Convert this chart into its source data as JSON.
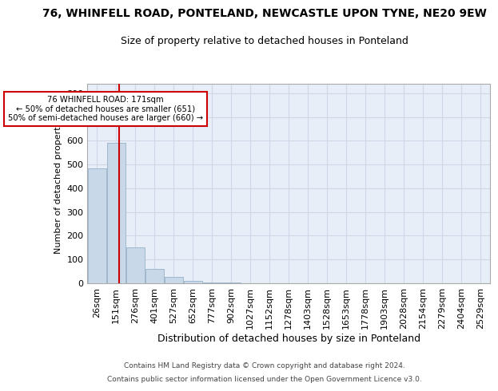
{
  "title1": "76, WHINFELL ROAD, PONTELAND, NEWCASTLE UPON TYNE, NE20 9EW",
  "title2": "Size of property relative to detached houses in Ponteland",
  "xlabel": "Distribution of detached houses by size in Ponteland",
  "ylabel": "Number of detached properties",
  "footer1": "Contains HM Land Registry data © Crown copyright and database right 2024.",
  "footer2": "Contains public sector information licensed under the Open Government Licence v3.0.",
  "bin_labels": [
    "26sqm",
    "151sqm",
    "276sqm",
    "401sqm",
    "527sqm",
    "652sqm",
    "777sqm",
    "902sqm",
    "1027sqm",
    "1152sqm",
    "1278sqm",
    "1403sqm",
    "1528sqm",
    "1653sqm",
    "1778sqm",
    "1903sqm",
    "2028sqm",
    "2154sqm",
    "2279sqm",
    "2404sqm",
    "2529sqm"
  ],
  "bar_heights": [
    485,
    590,
    150,
    62,
    27,
    10,
    5,
    3,
    1,
    0,
    0,
    0,
    0,
    0,
    0,
    0,
    0,
    0,
    0,
    0,
    0
  ],
  "bar_color": "#c8d8e8",
  "bar_edge_color": "#a0b8cc",
  "vline_color": "#cc0000",
  "vline_pos": 1.15,
  "annotation_text": "76 WHINFELL ROAD: 171sqm\n← 50% of detached houses are smaller (651)\n50% of semi-detached houses are larger (660) →",
  "annotation_box_color": "#ffffff",
  "annotation_box_edge": "#cc0000",
  "ylim": [
    0,
    840
  ],
  "yticks": [
    0,
    100,
    200,
    300,
    400,
    500,
    600,
    700,
    800
  ],
  "grid_color": "#d0d8e8",
  "bg_color": "#e8eef8",
  "title1_fontsize": 10,
  "title2_fontsize": 9,
  "xlabel_fontsize": 9,
  "ylabel_fontsize": 8
}
